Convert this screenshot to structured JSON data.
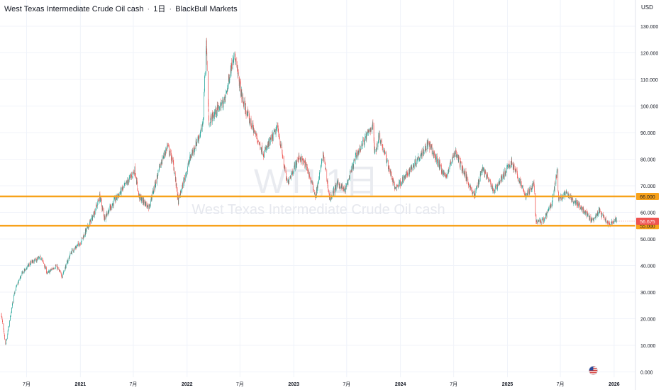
{
  "header": {
    "symbol_name": "West Texas Intermediate Crude Oil cash",
    "interval": "1日",
    "broker": "BlackBull Markets",
    "separator": "·"
  },
  "price_scale": {
    "currency": "USD"
  },
  "watermark": {
    "symbol": "WTI,1日",
    "description": "West Texas Intermediate Crude Oil cash"
  },
  "colors": {
    "up": "#26a69a",
    "down": "#ef5350",
    "level_line": "#f7a21b",
    "last_price_badge": "#ef5350",
    "grid": "#f0f3fa",
    "axis_text": "#131722"
  },
  "chart_data": {
    "type": "candlestick",
    "title": "West Texas Intermediate Crude Oil cash · 1日 · BlackBull Markets",
    "ylim": [
      -2,
      134
    ],
    "yticks": [
      0,
      10,
      20,
      30,
      40,
      50,
      60,
      70,
      80,
      90,
      100,
      110,
      120,
      130
    ],
    "ytick_labels": [
      "0.000",
      "10.000",
      "20.000",
      "30.000",
      "40.000",
      "50.000",
      "60.000",
      "70.000",
      "80.000",
      "90.000",
      "100.000",
      "110.000",
      "120.000",
      "130.000"
    ],
    "xlim": [
      "2020-04-01",
      "2026-03-15"
    ],
    "xticks": [
      {
        "date": "2020-07-01",
        "label": "7月"
      },
      {
        "date": "2021-01-01",
        "label": "2021"
      },
      {
        "date": "2021-07-01",
        "label": "7月"
      },
      {
        "date": "2022-01-01",
        "label": "2022"
      },
      {
        "date": "2022-07-01",
        "label": "7月"
      },
      {
        "date": "2023-01-01",
        "label": "2023"
      },
      {
        "date": "2023-07-01",
        "label": "7月"
      },
      {
        "date": "2024-01-01",
        "label": "2024"
      },
      {
        "date": "2024-07-01",
        "label": "7月"
      },
      {
        "date": "2025-01-01",
        "label": "2025"
      },
      {
        "date": "2025-07-01",
        "label": "7月"
      },
      {
        "date": "2026-01-01",
        "label": "2026"
      }
    ],
    "series": [
      {
        "price_path": [
          [
            "2020-04-05",
            22
          ],
          [
            "2020-04-20",
            10
          ],
          [
            "2020-04-28",
            15
          ],
          [
            "2020-05-20",
            30
          ],
          [
            "2020-06-15",
            37
          ],
          [
            "2020-07-15",
            41
          ],
          [
            "2020-08-20",
            43
          ],
          [
            "2020-09-10",
            37
          ],
          [
            "2020-10-10",
            40
          ],
          [
            "2020-10-30",
            36
          ],
          [
            "2020-11-30",
            45
          ],
          [
            "2020-12-31",
            48.5
          ],
          [
            "2021-02-15",
            59
          ],
          [
            "2021-03-08",
            66
          ],
          [
            "2021-03-24",
            58
          ],
          [
            "2021-05-01",
            65
          ],
          [
            "2021-06-15",
            72
          ],
          [
            "2021-07-06",
            76
          ],
          [
            "2021-07-20",
            66
          ],
          [
            "2021-08-23",
            62
          ],
          [
            "2021-10-05",
            79
          ],
          [
            "2021-10-26",
            85
          ],
          [
            "2021-11-15",
            78
          ],
          [
            "2021-12-02",
            64
          ],
          [
            "2022-01-10",
            80
          ],
          [
            "2022-02-23",
            92
          ],
          [
            "2022-03-08",
            124
          ],
          [
            "2022-03-16",
            94
          ],
          [
            "2022-04-10",
            98
          ],
          [
            "2022-05-10",
            102
          ],
          [
            "2022-06-10",
            120
          ],
          [
            "2022-07-10",
            102
          ],
          [
            "2022-08-01",
            95
          ],
          [
            "2022-09-20",
            82
          ],
          [
            "2022-11-07",
            92
          ],
          [
            "2022-12-09",
            71
          ],
          [
            "2023-01-20",
            81
          ],
          [
            "2023-02-15",
            77
          ],
          [
            "2023-03-17",
            66
          ],
          [
            "2023-04-12",
            82
          ],
          [
            "2023-05-04",
            65
          ],
          [
            "2023-06-01",
            71
          ],
          [
            "2023-06-25",
            68
          ],
          [
            "2023-08-01",
            81
          ],
          [
            "2023-09-28",
            93
          ],
          [
            "2023-10-05",
            82
          ],
          [
            "2023-10-20",
            89
          ],
          [
            "2023-12-13",
            69
          ],
          [
            "2024-01-15",
            73
          ],
          [
            "2024-04-05",
            86
          ],
          [
            "2024-06-04",
            73
          ],
          [
            "2024-07-05",
            83
          ],
          [
            "2024-09-10",
            66
          ],
          [
            "2024-10-07",
            77
          ],
          [
            "2024-11-15",
            68
          ],
          [
            "2025-01-15",
            79
          ],
          [
            "2025-03-05",
            66
          ],
          [
            "2025-04-02",
            71
          ],
          [
            "2025-04-09",
            56
          ],
          [
            "2025-05-05",
            57
          ],
          [
            "2025-06-01",
            63
          ],
          [
            "2025-06-20",
            75
          ],
          [
            "2025-06-25",
            65
          ],
          [
            "2025-07-20",
            67
          ],
          [
            "2025-09-01",
            63
          ],
          [
            "2025-10-20",
            56.5
          ],
          [
            "2025-11-10",
            60.5
          ],
          [
            "2025-12-16",
            55.2
          ],
          [
            "2026-01-05",
            57.5
          ],
          [
            "2026-01-10",
            56.675
          ]
        ]
      }
    ],
    "horizontal_levels": [
      {
        "value": 66.0,
        "label": "66.000"
      },
      {
        "value": 55.0,
        "label": "55.000"
      }
    ],
    "last_price": {
      "value": 56.675,
      "label": "56.675"
    },
    "grid": true,
    "legend": "none"
  }
}
